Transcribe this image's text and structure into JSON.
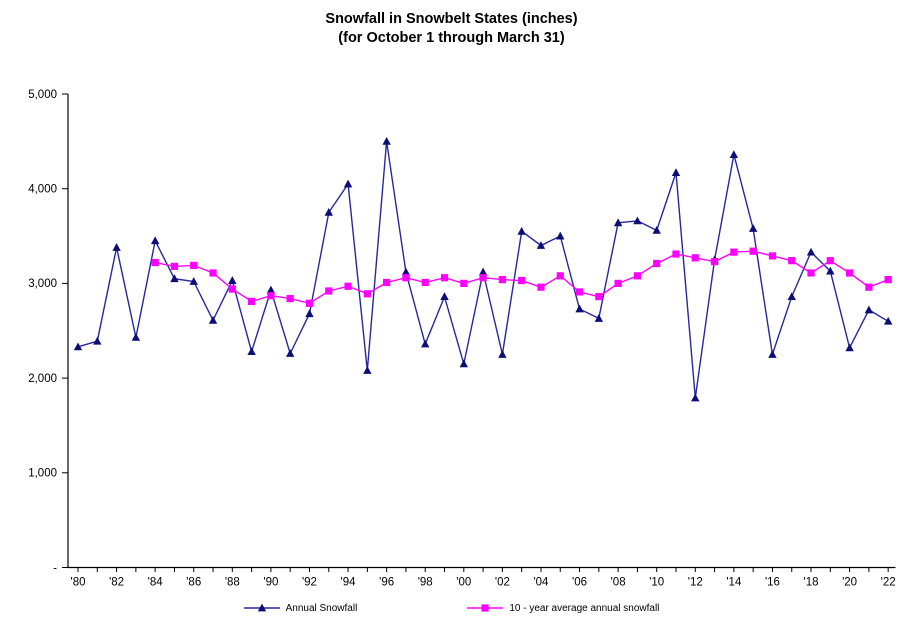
{
  "title": {
    "line1": "Snowfall in Snowbelt States (inches)",
    "line2": "(for October 1 through March 31)"
  },
  "legend": {
    "annual": "Annual Snowfall",
    "average": "10 - year average annual snowfall"
  },
  "colors": {
    "annual_line": "#27279e",
    "annual_marker": "#0d0d78",
    "average_line": "#ff00ff",
    "average_marker": "#ff00ff",
    "axis": "#000000",
    "background": "#ffffff"
  },
  "chart_data": {
    "type": "line",
    "title": "Snowfall in Snowbelt States (inches) (for October 1 through March 31)",
    "grid": false,
    "legend_position": "bottom-center",
    "x": [
      1980,
      1981,
      1982,
      1983,
      1984,
      1985,
      1986,
      1987,
      1988,
      1989,
      1990,
      1991,
      1992,
      1993,
      1994,
      1995,
      1996,
      1997,
      1998,
      1999,
      2000,
      2001,
      2002,
      2003,
      2004,
      2005,
      2006,
      2007,
      2008,
      2009,
      2010,
      2011,
      2012,
      2013,
      2014,
      2015,
      2016,
      2017,
      2018,
      2019,
      2020,
      2021,
      2022
    ],
    "x_axis": {
      "tick_labels": [
        "'80",
        "'82",
        "'84",
        "'86",
        "'88",
        "'90",
        "'92",
        "'94",
        "'96",
        "'98",
        "'00",
        "'02",
        "'04",
        "'06",
        "'08",
        "'10",
        "'12",
        "'14",
        "'16",
        "'18",
        "'20",
        "'22"
      ],
      "label_every_years": 2,
      "tick_every_years": 1
    },
    "y_axis": {
      "range": [
        0,
        5000
      ],
      "ticks": [
        {
          "value": 0,
          "label": "-"
        },
        {
          "value": 1000,
          "label": "1,000"
        },
        {
          "value": 2000,
          "label": "2,000"
        },
        {
          "value": 3000,
          "label": "3,000"
        },
        {
          "value": 4000,
          "label": "4,000"
        },
        {
          "value": 5000,
          "label": "5,000"
        }
      ]
    },
    "series": [
      {
        "id": "annual-snowfall",
        "name": "Annual Snowfall",
        "marker": "triangle",
        "line_color": "#27279e",
        "marker_color": "#0d0d78",
        "values": [
          2330,
          2390,
          3380,
          2430,
          3450,
          3050,
          3020,
          2610,
          3030,
          2280,
          2930,
          2260,
          2680,
          3750,
          4050,
          2080,
          4500,
          3120,
          2360,
          2860,
          2150,
          3120,
          2250,
          3550,
          3400,
          3500,
          2730,
          2630,
          3640,
          3660,
          3560,
          4170,
          1790,
          3250,
          4360,
          3580,
          2250,
          2860,
          3330,
          3130,
          2320,
          2720,
          2600
        ]
      },
      {
        "id": "ten-year-average",
        "name": "10 - year average annual snowfall",
        "marker": "square",
        "line_color": "#ff00ff",
        "marker_color": "#ff00ff",
        "values": [
          null,
          null,
          null,
          null,
          3220,
          3180,
          3190,
          3110,
          2940,
          2810,
          2870,
          2840,
          2790,
          2920,
          2970,
          2890,
          3010,
          3060,
          3010,
          3060,
          3000,
          3060,
          3040,
          3030,
          2960,
          3080,
          2910,
          2860,
          3000,
          3080,
          3210,
          3310,
          3270,
          3230,
          3330,
          3340,
          3290,
          3240,
          3110,
          3240,
          3110,
          2960,
          3040
        ]
      }
    ],
    "note_series_values_corrected": null
  }
}
